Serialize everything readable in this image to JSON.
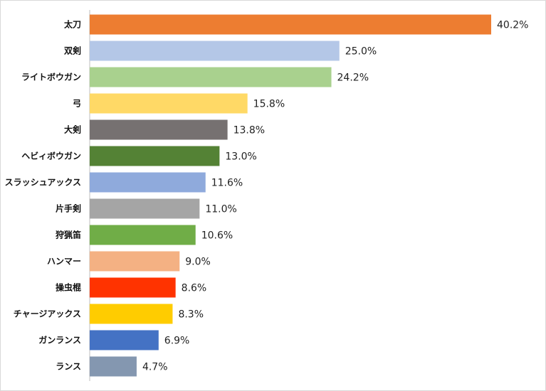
{
  "chart_data": {
    "type": "bar",
    "orientation": "horizontal",
    "title": "",
    "xlabel": "",
    "ylabel": "",
    "xlim": [
      0,
      45
    ],
    "grid": false,
    "legend": "none",
    "value_suffix": "%",
    "categories": [
      "太刀",
      "双剣",
      "ライトボウガン",
      "弓",
      "大剣",
      "ヘビィボウガン",
      "スラッシュアックス",
      "片手剣",
      "狩猟笛",
      "ハンマー",
      "操虫棍",
      "チャージアックス",
      "ガンランス",
      "ランス"
    ],
    "values": [
      40.2,
      25.0,
      24.2,
      15.8,
      13.8,
      13.0,
      11.6,
      11.0,
      10.6,
      9.0,
      8.6,
      8.3,
      6.9,
      4.7
    ],
    "value_labels": [
      "40.2%",
      "25.0%",
      "24.2%",
      "15.8%",
      "13.8%",
      "13.0%",
      "11.6%",
      "11.0%",
      "10.6%",
      "9.0%",
      "8.6%",
      "8.3%",
      "6.9%",
      "4.7%"
    ],
    "colors": [
      "#ED7D31",
      "#B4C7E7",
      "#A9D18E",
      "#FFD966",
      "#767171",
      "#548235",
      "#8FAADC",
      "#A5A5A5",
      "#70AD47",
      "#F4B183",
      "#FF3300",
      "#FFCC00",
      "#4472C4",
      "#8497B0"
    ]
  }
}
